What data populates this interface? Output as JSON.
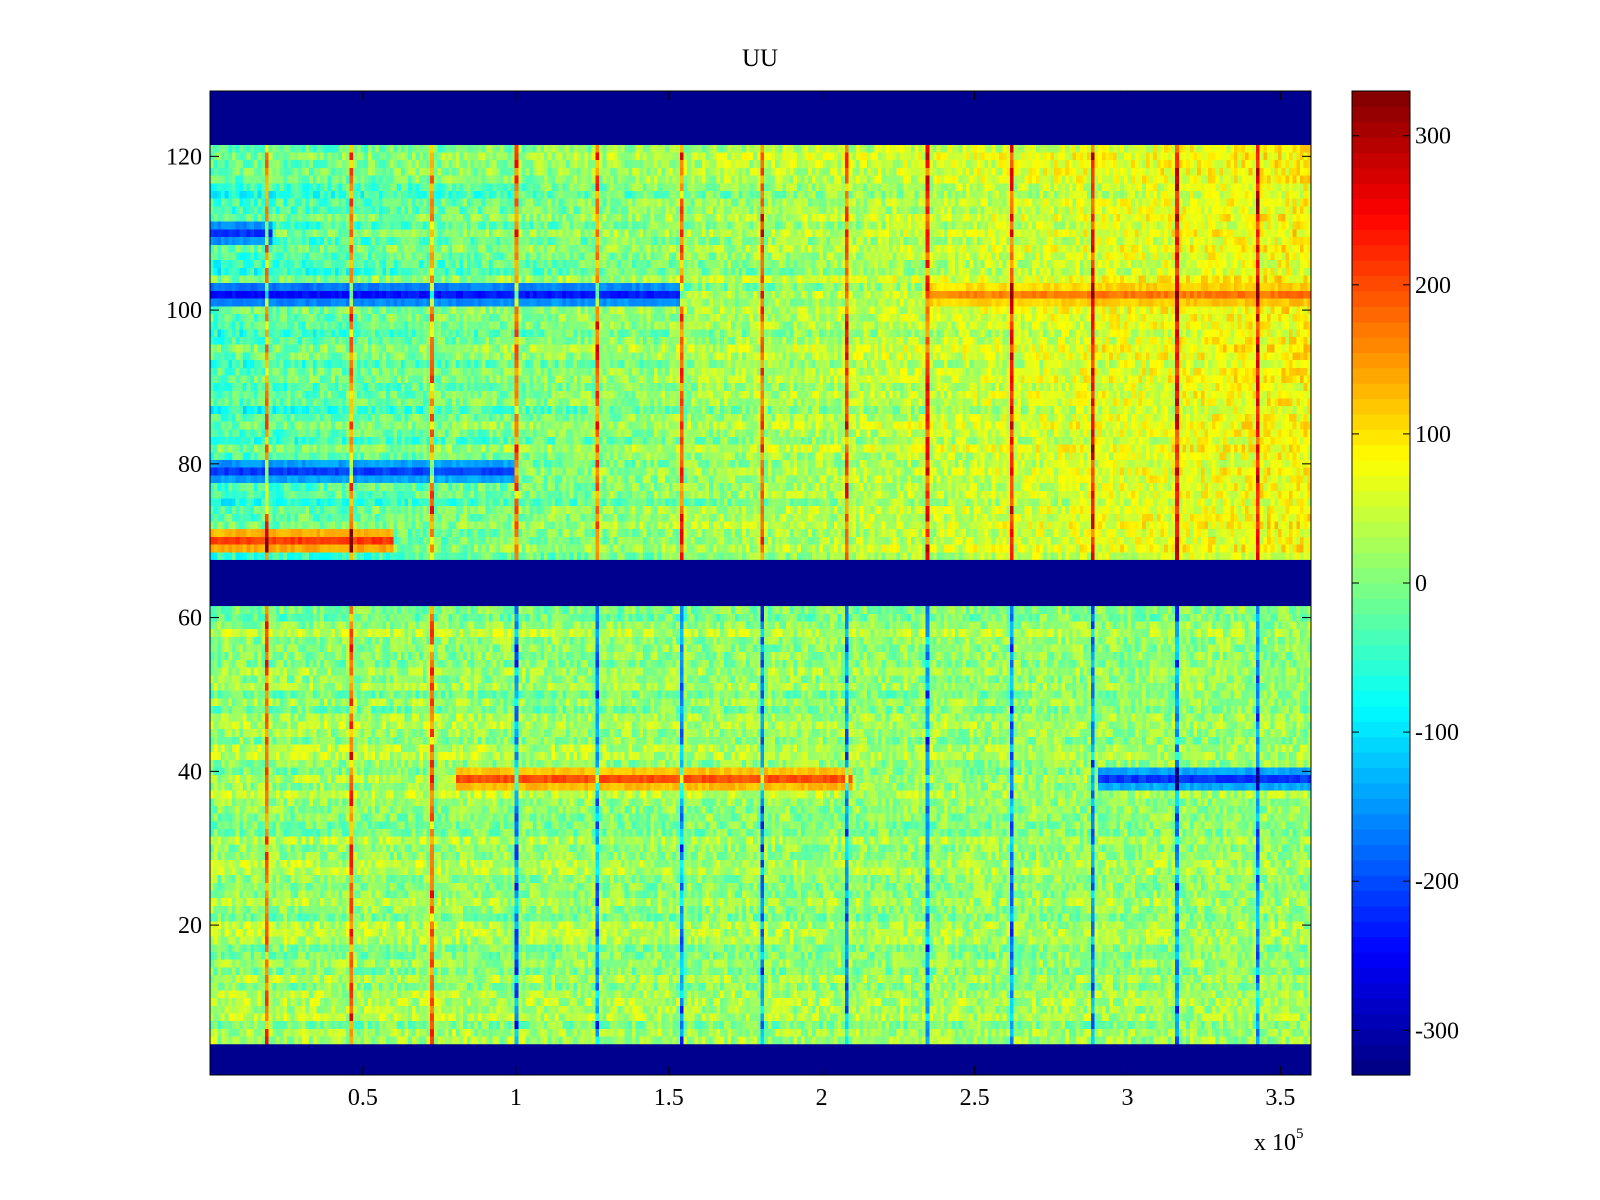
{
  "chart_data": {
    "type": "heatmap",
    "title": "UU",
    "xlabel": "",
    "ylabel": "",
    "x_multiplier_label": "x 10",
    "x_multiplier_exponent": "5",
    "xlim": [
      0,
      360000
    ],
    "ylim": [
      0.5,
      128.5
    ],
    "xticks": [
      0.5,
      1,
      1.5,
      2,
      2.5,
      3,
      3.5
    ],
    "xtick_labels": [
      "0.5",
      "1",
      "1.5",
      "2",
      "2.5",
      "3",
      "3.5"
    ],
    "yticks": [
      20,
      40,
      60,
      80,
      100,
      120
    ],
    "ytick_labels": [
      "20",
      "40",
      "60",
      "80",
      "100",
      "120"
    ],
    "colormap": "jet",
    "clim": [
      -330,
      330
    ],
    "colorbar": {
      "ticks": [
        300,
        200,
        100,
        0,
        -100,
        -200,
        -300
      ],
      "tick_labels": [
        "300",
        "200",
        "100",
        "0",
        "-100",
        "-200",
        "-300"
      ]
    },
    "empty_channel_bands": [
      [
        0.5,
        4.5
      ],
      [
        61.5,
        67.5
      ],
      [
        121.5,
        128.5
      ]
    ],
    "band_value": -330,
    "periodic_vertical_spike_x": [
      19000,
      46000,
      73000,
      100000,
      127000,
      154000,
      181000,
      208000,
      235000,
      262000,
      289000,
      316000,
      343000
    ],
    "notable_row_features": [
      {
        "channel": 102,
        "x_range": [
          0,
          155000
        ],
        "value": -280
      },
      {
        "channel": 102,
        "x_range": [
          235000,
          360000
        ],
        "value": 170
      },
      {
        "channel": 70,
        "x_range": [
          0,
          60000
        ],
        "value": 260
      },
      {
        "channel": 39,
        "x_range": [
          80000,
          210000
        ],
        "value": 220
      },
      {
        "channel": 39,
        "x_range": [
          290000,
          360000
        ],
        "value": -260
      },
      {
        "channel": 79,
        "x_range": [
          0,
          100000
        ],
        "value": -240
      },
      {
        "channel": 110,
        "x_range": [
          0,
          20000
        ],
        "value": -250
      }
    ],
    "colors": {
      "background_band": "#00008f",
      "axis": "#000000"
    }
  }
}
